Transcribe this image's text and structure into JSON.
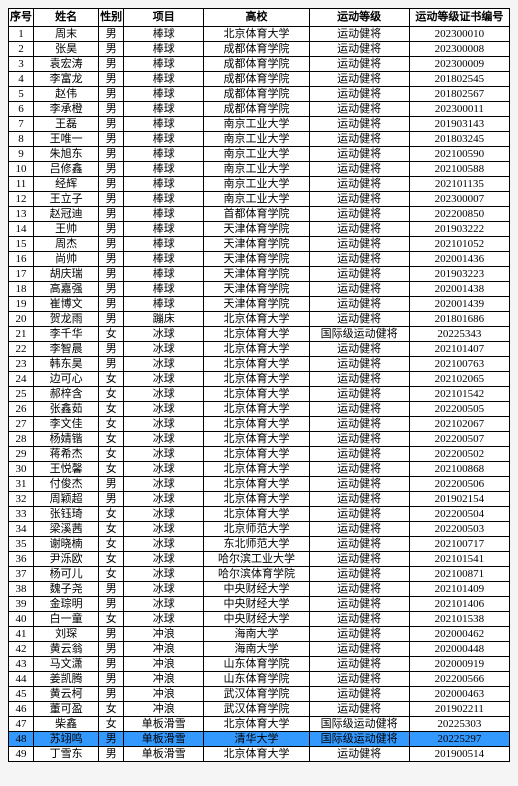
{
  "table": {
    "headers": {
      "seq": "序号",
      "name": "姓名",
      "sex": "性别",
      "project": "项目",
      "school": "高校",
      "level": "运动等级",
      "cert": "运动等级证书编号"
    },
    "highlight_row": 48,
    "highlight_color": "#3399ff",
    "border_color": "#000000",
    "background_color": "#ffffff",
    "font_size_pt": 8,
    "rows": [
      {
        "seq": "1",
        "name": "周末",
        "sex": "男",
        "project": "棒球",
        "school": "北京体育大学",
        "level": "运动健将",
        "cert": "202300010"
      },
      {
        "seq": "2",
        "name": "张昊",
        "sex": "男",
        "project": "棒球",
        "school": "成都体育学院",
        "level": "运动健将",
        "cert": "202300008"
      },
      {
        "seq": "3",
        "name": "袁宏涛",
        "sex": "男",
        "project": "棒球",
        "school": "成都体育学院",
        "level": "运动健将",
        "cert": "202300009"
      },
      {
        "seq": "4",
        "name": "李富龙",
        "sex": "男",
        "project": "棒球",
        "school": "成都体育学院",
        "level": "运动健将",
        "cert": "201802545"
      },
      {
        "seq": "5",
        "name": "赵伟",
        "sex": "男",
        "project": "棒球",
        "school": "成都体育学院",
        "level": "运动健将",
        "cert": "201802567"
      },
      {
        "seq": "6",
        "name": "李承橙",
        "sex": "男",
        "project": "棒球",
        "school": "成都体育学院",
        "level": "运动健将",
        "cert": "202300011"
      },
      {
        "seq": "7",
        "name": "王磊",
        "sex": "男",
        "project": "棒球",
        "school": "南京工业大学",
        "level": "运动健将",
        "cert": "201903143"
      },
      {
        "seq": "8",
        "name": "王唯一",
        "sex": "男",
        "project": "棒球",
        "school": "南京工业大学",
        "level": "运动健将",
        "cert": "201803245"
      },
      {
        "seq": "9",
        "name": "朱旭东",
        "sex": "男",
        "project": "棒球",
        "school": "南京工业大学",
        "level": "运动健将",
        "cert": "202100590"
      },
      {
        "seq": "10",
        "name": "吕修鑫",
        "sex": "男",
        "project": "棒球",
        "school": "南京工业大学",
        "level": "运动健将",
        "cert": "202100588"
      },
      {
        "seq": "11",
        "name": "经辉",
        "sex": "男",
        "project": "棒球",
        "school": "南京工业大学",
        "level": "运动健将",
        "cert": "202101135"
      },
      {
        "seq": "12",
        "name": "王立子",
        "sex": "男",
        "project": "棒球",
        "school": "南京工业大学",
        "level": "运动健将",
        "cert": "202300007"
      },
      {
        "seq": "13",
        "name": "赵冠迪",
        "sex": "男",
        "project": "棒球",
        "school": "首都体育学院",
        "level": "运动健将",
        "cert": "202200850"
      },
      {
        "seq": "14",
        "name": "王帅",
        "sex": "男",
        "project": "棒球",
        "school": "天津体育学院",
        "level": "运动健将",
        "cert": "201903222"
      },
      {
        "seq": "15",
        "name": "周杰",
        "sex": "男",
        "project": "棒球",
        "school": "天津体育学院",
        "level": "运动健将",
        "cert": "202101052"
      },
      {
        "seq": "16",
        "name": "尚帅",
        "sex": "男",
        "project": "棒球",
        "school": "天津体育学院",
        "level": "运动健将",
        "cert": "202001436"
      },
      {
        "seq": "17",
        "name": "胡庆瑞",
        "sex": "男",
        "project": "棒球",
        "school": "天津体育学院",
        "level": "运动健将",
        "cert": "201903223"
      },
      {
        "seq": "18",
        "name": "高嘉强",
        "sex": "男",
        "project": "棒球",
        "school": "天津体育学院",
        "level": "运动健将",
        "cert": "202001438"
      },
      {
        "seq": "19",
        "name": "崔博文",
        "sex": "男",
        "project": "棒球",
        "school": "天津体育学院",
        "level": "运动健将",
        "cert": "202001439"
      },
      {
        "seq": "20",
        "name": "贺龙雨",
        "sex": "男",
        "project": "蹦床",
        "school": "北京体育大学",
        "level": "运动健将",
        "cert": "201801686"
      },
      {
        "seq": "21",
        "name": "李千华",
        "sex": "女",
        "project": "冰球",
        "school": "北京体育大学",
        "level": "国际级运动健将",
        "cert": "20225343"
      },
      {
        "seq": "22",
        "name": "李智晨",
        "sex": "男",
        "project": "冰球",
        "school": "北京体育大学",
        "level": "运动健将",
        "cert": "202101407"
      },
      {
        "seq": "23",
        "name": "韩东昊",
        "sex": "男",
        "project": "冰球",
        "school": "北京体育大学",
        "level": "运动健将",
        "cert": "202100763"
      },
      {
        "seq": "24",
        "name": "边可心",
        "sex": "女",
        "project": "冰球",
        "school": "北京体育大学",
        "level": "运动健将",
        "cert": "202102065"
      },
      {
        "seq": "25",
        "name": "郝梓含",
        "sex": "女",
        "project": "冰球",
        "school": "北京体育大学",
        "level": "运动健将",
        "cert": "202101542"
      },
      {
        "seq": "26",
        "name": "张鑫茹",
        "sex": "女",
        "project": "冰球",
        "school": "北京体育大学",
        "level": "运动健将",
        "cert": "202200505"
      },
      {
        "seq": "27",
        "name": "李文佳",
        "sex": "女",
        "project": "冰球",
        "school": "北京体育大学",
        "level": "运动健将",
        "cert": "202102067"
      },
      {
        "seq": "28",
        "name": "杨婧锴",
        "sex": "女",
        "project": "冰球",
        "school": "北京体育大学",
        "level": "运动健将",
        "cert": "202200507"
      },
      {
        "seq": "29",
        "name": "蒋希杰",
        "sex": "女",
        "project": "冰球",
        "school": "北京体育大学",
        "level": "运动健将",
        "cert": "202200502"
      },
      {
        "seq": "30",
        "name": "王悦馨",
        "sex": "女",
        "project": "冰球",
        "school": "北京体育大学",
        "level": "运动健将",
        "cert": "202100868"
      },
      {
        "seq": "31",
        "name": "付俊杰",
        "sex": "男",
        "project": "冰球",
        "school": "北京体育大学",
        "level": "运动健将",
        "cert": "202200506"
      },
      {
        "seq": "32",
        "name": "周颖超",
        "sex": "男",
        "project": "冰球",
        "school": "北京体育大学",
        "level": "运动健将",
        "cert": "201902154"
      },
      {
        "seq": "33",
        "name": "张钰琦",
        "sex": "女",
        "project": "冰球",
        "school": "北京体育大学",
        "level": "运动健将",
        "cert": "202200504"
      },
      {
        "seq": "34",
        "name": "梁溪茜",
        "sex": "女",
        "project": "冰球",
        "school": "北京师范大学",
        "level": "运动健将",
        "cert": "202200503"
      },
      {
        "seq": "35",
        "name": "谢晓楠",
        "sex": "女",
        "project": "冰球",
        "school": "东北师范大学",
        "level": "运动健将",
        "cert": "202100717"
      },
      {
        "seq": "36",
        "name": "尹泺欧",
        "sex": "女",
        "project": "冰球",
        "school": "哈尔滨工业大学",
        "level": "运动健将",
        "cert": "202101541"
      },
      {
        "seq": "37",
        "name": "杨可儿",
        "sex": "女",
        "project": "冰球",
        "school": "哈尔滨体育学院",
        "level": "运动健将",
        "cert": "202100871"
      },
      {
        "seq": "38",
        "name": "魏子尧",
        "sex": "男",
        "project": "冰球",
        "school": "中央财经大学",
        "level": "运动健将",
        "cert": "202101409"
      },
      {
        "seq": "39",
        "name": "金琮明",
        "sex": "男",
        "project": "冰球",
        "school": "中央财经大学",
        "level": "运动健将",
        "cert": "202101406"
      },
      {
        "seq": "40",
        "name": "白一童",
        "sex": "女",
        "project": "冰球",
        "school": "中央财经大学",
        "level": "运动健将",
        "cert": "202101538"
      },
      {
        "seq": "41",
        "name": "刘琛",
        "sex": "男",
        "project": "冲浪",
        "school": "海南大学",
        "level": "运动健将",
        "cert": "202000462"
      },
      {
        "seq": "42",
        "name": "黄云翁",
        "sex": "男",
        "project": "冲浪",
        "school": "海南大学",
        "level": "运动健将",
        "cert": "202000448"
      },
      {
        "seq": "43",
        "name": "马文潇",
        "sex": "男",
        "project": "冲浪",
        "school": "山东体育学院",
        "level": "运动健将",
        "cert": "202000919"
      },
      {
        "seq": "44",
        "name": "姜凯腾",
        "sex": "男",
        "project": "冲浪",
        "school": "山东体育学院",
        "level": "运动健将",
        "cert": "202200566"
      },
      {
        "seq": "45",
        "name": "黄云柯",
        "sex": "男",
        "project": "冲浪",
        "school": "武汉体育学院",
        "level": "运动健将",
        "cert": "202000463"
      },
      {
        "seq": "46",
        "name": "董可盈",
        "sex": "女",
        "project": "冲浪",
        "school": "武汉体育学院",
        "level": "运动健将",
        "cert": "201902211"
      },
      {
        "seq": "47",
        "name": "柴鑫",
        "sex": "女",
        "project": "单板滑雪",
        "school": "北京体育大学",
        "level": "国际级运动健将",
        "cert": "20225303"
      },
      {
        "seq": "48",
        "name": "苏翊鸣",
        "sex": "男",
        "project": "单板滑雪",
        "school": "清华大学",
        "level": "国际级运动健将",
        "cert": "20225297"
      },
      {
        "seq": "49",
        "name": "丁雪东",
        "sex": "男",
        "project": "单板滑雪",
        "school": "北京体育大学",
        "level": "运动健将",
        "cert": "201900514"
      }
    ]
  }
}
